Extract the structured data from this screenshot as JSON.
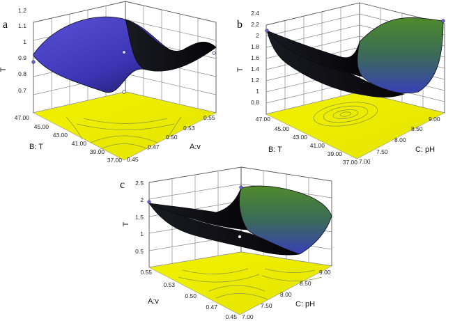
{
  "chart_data": [
    {
      "type": "surface",
      "panel_label": "a",
      "xlabel": "A:v",
      "ylabel": "B: T",
      "zlabel": "T",
      "x_ticks": [
        "0.45",
        "0.47",
        "0.50",
        "0.53",
        "0.55"
      ],
      "y_ticks": [
        "37.00",
        "39.00",
        "41.00",
        "43.00",
        "45.00",
        "47.00"
      ],
      "z_ticks": [
        "0.7",
        "0.8",
        "0.9",
        "1",
        "1.1",
        "1.2"
      ],
      "xlim": [
        0.45,
        0.55
      ],
      "ylim": [
        37,
        47
      ],
      "zlim": [
        0.7,
        1.2
      ],
      "surface_kind": "saddle",
      "surface_grid": {
        "x": [
          0.45,
          0.475,
          0.5,
          0.525,
          0.55
        ],
        "y": [
          37,
          39.5,
          42,
          44.5,
          47
        ],
        "z": [
          [
            1.02,
            0.94,
            0.88,
            0.94,
            1.02
          ],
          [
            0.93,
            0.89,
            0.86,
            0.89,
            0.93
          ],
          [
            0.85,
            0.85,
            0.86,
            0.85,
            0.85
          ],
          [
            0.78,
            0.81,
            0.86,
            0.81,
            0.78
          ],
          [
            0.7,
            0.77,
            0.88,
            0.77,
            0.7
          ]
        ]
      },
      "design_points": [
        {
          "x": 0.45,
          "y": 47,
          "z": 0.91
        },
        {
          "x": 0.5,
          "y": 42,
          "z": 0.98
        },
        {
          "x": 0.55,
          "y": 37,
          "z": 0.99
        },
        {
          "x": 0.45,
          "y": 37,
          "z": 0.71
        }
      ]
    },
    {
      "type": "surface",
      "panel_label": "b",
      "xlabel": "C: pH",
      "ylabel": "B: T",
      "zlabel": "T",
      "x_ticks": [
        "7.00",
        "7.50",
        "8.00",
        "8.50",
        "9.00"
      ],
      "y_ticks": [
        "37.00",
        "39.00",
        "41.00",
        "43.00",
        "45.00",
        "47.00"
      ],
      "z_ticks": [
        "0.8",
        "1",
        "1.2",
        "1.4",
        "1.6",
        "1.8",
        "2",
        "2.2",
        "2.4"
      ],
      "xlim": [
        7,
        9
      ],
      "ylim": [
        37,
        47
      ],
      "zlim": [
        0.8,
        2.4
      ],
      "surface_kind": "bowl",
      "surface_grid": {
        "x": [
          7,
          7.5,
          8,
          8.5,
          9
        ],
        "y": [
          37,
          39.5,
          42,
          44.5,
          47
        ],
        "z": [
          [
            1.85,
            1.45,
            1.25,
            1.45,
            1.85
          ],
          [
            1.55,
            1.1,
            0.95,
            1.1,
            1.55
          ],
          [
            1.45,
            1.0,
            0.85,
            1.0,
            1.45
          ],
          [
            1.6,
            1.15,
            1.0,
            1.15,
            1.6
          ],
          [
            2.05,
            1.6,
            1.35,
            1.6,
            2.05
          ]
        ]
      },
      "design_points": [
        {
          "x": 7,
          "y": 47,
          "z": 2.1
        },
        {
          "x": 9,
          "y": 37,
          "z": 2.2
        }
      ]
    },
    {
      "type": "surface",
      "panel_label": "c",
      "xlabel": "C: pH",
      "ylabel": "A:v",
      "zlabel": "T",
      "x_ticks": [
        "7.00",
        "7.50",
        "8.00",
        "8.50",
        "9.00"
      ],
      "y_ticks": [
        "0.45",
        "0.47",
        "0.50",
        "0.53",
        "0.55"
      ],
      "z_ticks": [
        "0.5",
        "1",
        "1.5",
        "2",
        "2.5"
      ],
      "xlim": [
        7,
        9
      ],
      "ylim": [
        0.45,
        0.55
      ],
      "zlim": [
        0.5,
        2.5
      ],
      "surface_kind": "saddle",
      "surface_grid": {
        "x": [
          7,
          7.5,
          8,
          8.5,
          9
        ],
        "y": [
          0.45,
          0.475,
          0.5,
          0.525,
          0.55
        ],
        "z": [
          [
            1.55,
            1.25,
            1.05,
            1.35,
            1.85
          ],
          [
            1.35,
            1.05,
            0.85,
            1.15,
            1.55
          ],
          [
            1.25,
            0.95,
            0.75,
            1.05,
            1.45
          ],
          [
            1.5,
            1.2,
            1.0,
            1.3,
            1.75
          ],
          [
            1.9,
            1.55,
            1.3,
            1.7,
            2.05
          ]
        ]
      },
      "design_points": [
        {
          "x": 7,
          "y": 0.55,
          "z": 1.95
        },
        {
          "x": 9,
          "y": 0.55,
          "z": 2.3
        },
        {
          "x": 8,
          "y": 0.5,
          "z": 1.0
        }
      ]
    }
  ]
}
